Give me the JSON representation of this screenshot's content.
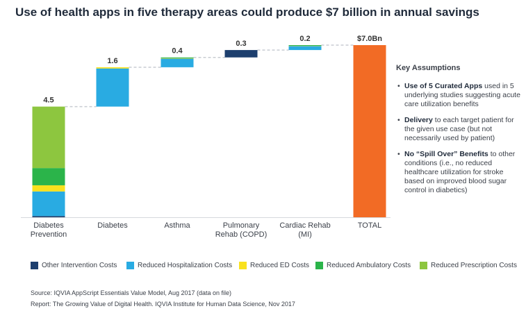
{
  "title": "Use of health apps in five therapy areas could produce $7 billion in annual savings",
  "colors": {
    "other_intervention": "#1d3f6e",
    "hospitalization": "#29abe2",
    "ed": "#f9e11e",
    "ambulatory": "#2bb44a",
    "prescription": "#8dc63f",
    "total": "#f26b25",
    "connector": "#c8ccd2"
  },
  "chart_data": {
    "type": "bar",
    "subtype": "waterfall-stacked",
    "categories": [
      "Diabetes\nPrevention",
      "Diabetes",
      "Asthma",
      "Pulmonary\nRehab (COPD)",
      "Cardiac Rehab\n(MI)",
      "TOTAL"
    ],
    "value_labels": [
      "4.5",
      "1.6",
      "0.4",
      "0.3",
      "0.2",
      "$7.0Bn"
    ],
    "series": [
      {
        "name": "Other Intervention Costs",
        "values": [
          0.05,
          0,
          0,
          0.3,
          0,
          0
        ]
      },
      {
        "name": "Reduced Hospitalization Costs",
        "values": [
          1.0,
          1.55,
          0.35,
          0,
          0.16,
          0
        ]
      },
      {
        "name": "Reduced ED Costs",
        "values": [
          0.25,
          0.05,
          0.02,
          0,
          0.01,
          0
        ]
      },
      {
        "name": "Reduced Ambulatory Costs",
        "values": [
          0.7,
          0,
          0.03,
          0,
          0.03,
          0
        ]
      },
      {
        "name": "Reduced Prescription Costs",
        "values": [
          2.5,
          0,
          0,
          0,
          0,
          0
        ]
      }
    ],
    "total": 7.0,
    "ylim": [
      0,
      7.5
    ]
  },
  "assumptions": {
    "heading": "Key Assumptions",
    "items": [
      {
        "bold": "Use of 5 Curated Apps",
        "text": " used in 5 underlying studies suggesting acute care utilization benefits"
      },
      {
        "bold": "Delivery",
        "text": " to each target patient for the given use case (but not necessarily used by patient)"
      },
      {
        "bold": "No “Spill Over” Benefits",
        "text": " to other conditions (i.e., no reduced healthcare utilization for stroke based on improved blood sugar control in diabetics)"
      }
    ]
  },
  "legend": [
    {
      "label": "Other Intervention Costs",
      "color": "#1d3f6e"
    },
    {
      "label": "Reduced Hospitalization Costs",
      "color": "#29abe2"
    },
    {
      "label": "Reduced ED Costs",
      "color": "#f9e11e"
    },
    {
      "label": "Reduced Ambulatory Costs",
      "color": "#2bb44a"
    },
    {
      "label": "Reduced Prescription Costs",
      "color": "#8dc63f"
    }
  ],
  "source_lines": [
    "Source: IQVIA AppScript Essentials Value Model, Aug 2017 (data on file)",
    "Report: The Growing Value of Digital Health. IQVIA Institute for Human Data Science, Nov 2017"
  ]
}
